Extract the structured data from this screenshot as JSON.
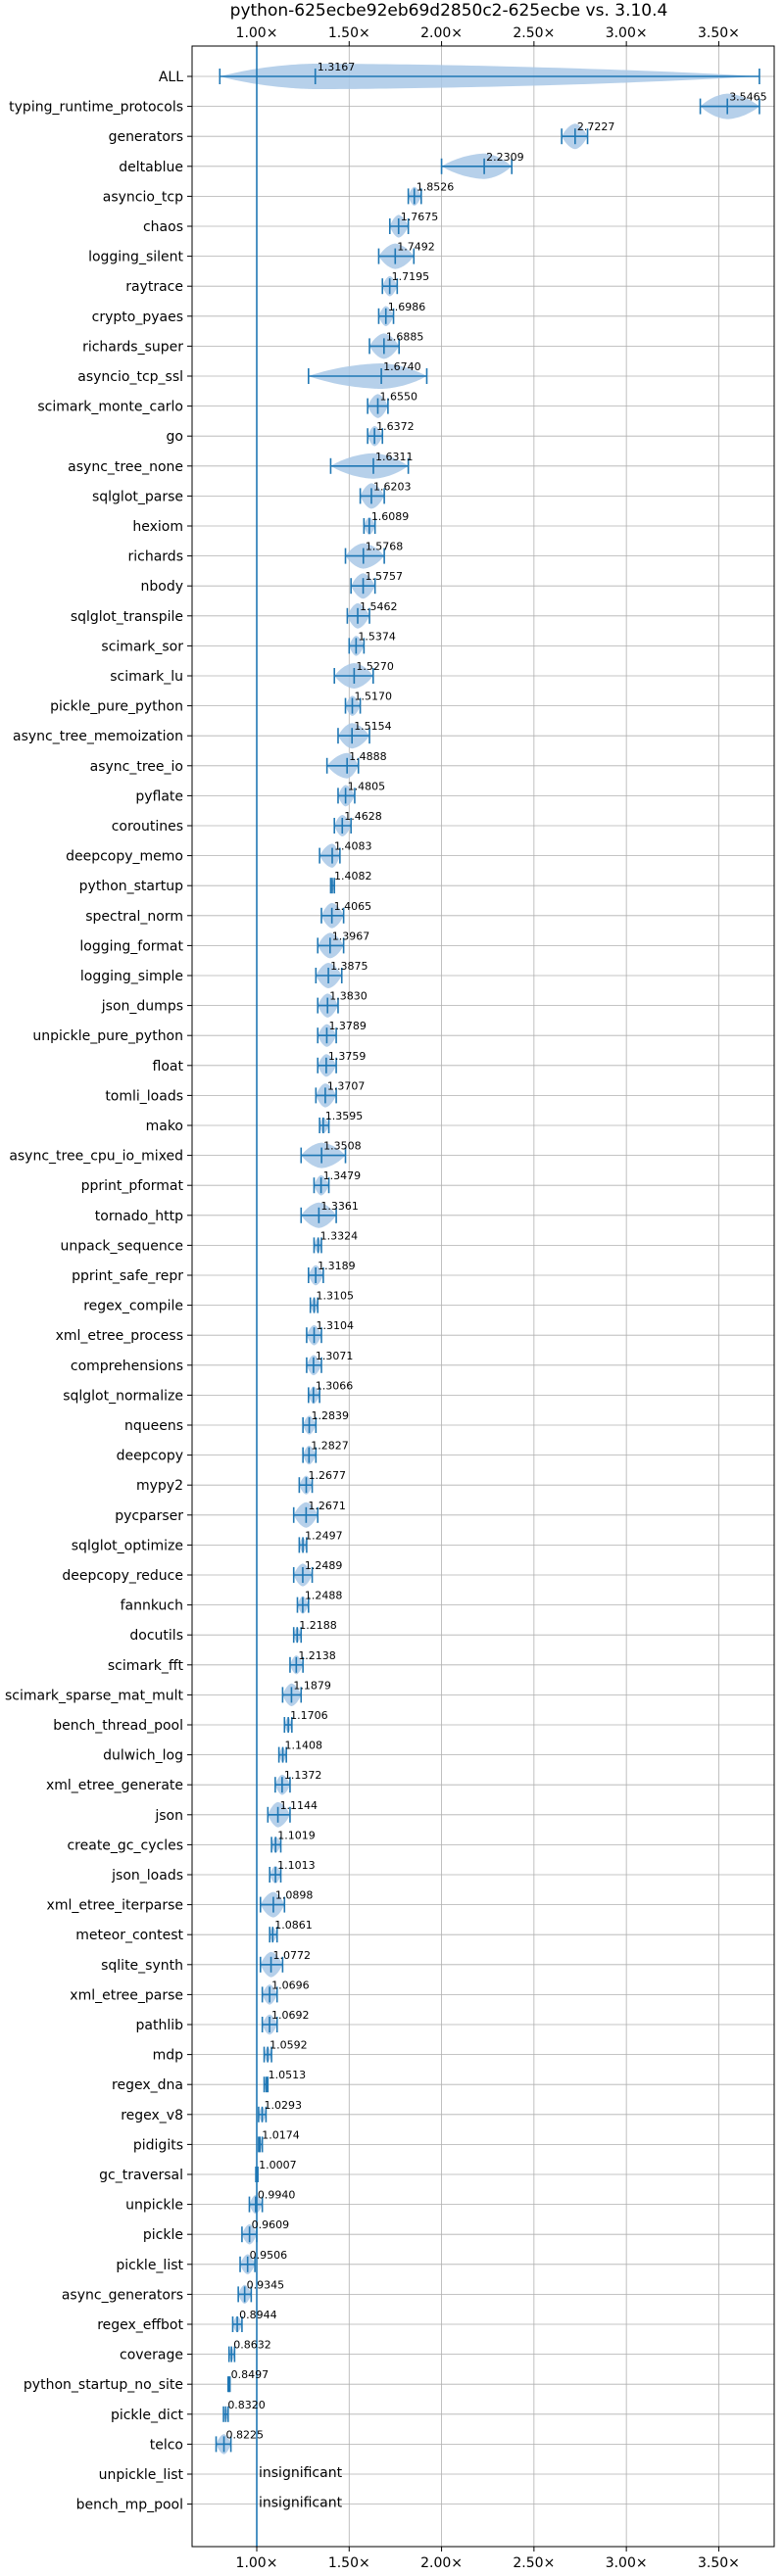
{
  "chart_data": {
    "type": "violin",
    "title": "python-625ecbe92eb69d2850c2-625ecbe vs. 3.10.4",
    "xlabel": "",
    "ylabel": "",
    "xlim": [
      0.65,
      3.8
    ],
    "xticks": [
      {
        "value": 1.0,
        "label": "1.00×"
      },
      {
        "value": 1.5,
        "label": "1.50×"
      },
      {
        "value": 2.0,
        "label": "2.00×"
      },
      {
        "value": 2.5,
        "label": "2.50×"
      },
      {
        "value": 3.0,
        "label": "3.00×"
      },
      {
        "value": 3.5,
        "label": "3.50×"
      }
    ],
    "grid": true,
    "reference_line": 1.0,
    "colors": {
      "violin": "#a9c8e6",
      "line": "#1f77b4"
    },
    "benchmarks": [
      {
        "name": "ALL",
        "label": "1.3167",
        "mean": 1.3167,
        "min": 0.8,
        "max": 3.72,
        "spread": 0.12
      },
      {
        "name": "typing_runtime_protocols",
        "label": "3.5465",
        "mean": 3.5465,
        "min": 3.4,
        "max": 3.72,
        "spread": 0.14
      },
      {
        "name": "generators",
        "label": "2.7227",
        "mean": 2.7227,
        "min": 2.65,
        "max": 2.79,
        "spread": 0.06
      },
      {
        "name": "deltablue",
        "label": "2.2309",
        "mean": 2.2309,
        "min": 2.0,
        "max": 2.38,
        "spread": 0.1
      },
      {
        "name": "asyncio_tcp",
        "label": "1.8526",
        "mean": 1.8526,
        "min": 1.82,
        "max": 1.89,
        "spread": 0.03
      },
      {
        "name": "chaos",
        "label": "1.7675",
        "mean": 1.7675,
        "min": 1.72,
        "max": 1.82,
        "spread": 0.04
      },
      {
        "name": "logging_silent",
        "label": "1.7492",
        "mean": 1.7492,
        "min": 1.66,
        "max": 1.85,
        "spread": 0.07
      },
      {
        "name": "raytrace",
        "label": "1.7195",
        "mean": 1.7195,
        "min": 1.68,
        "max": 1.76,
        "spread": 0.03
      },
      {
        "name": "crypto_pyaes",
        "label": "1.6986",
        "mean": 1.6986,
        "min": 1.66,
        "max": 1.74,
        "spread": 0.03
      },
      {
        "name": "richards_super",
        "label": "1.6885",
        "mean": 1.6885,
        "min": 1.61,
        "max": 1.77,
        "spread": 0.06
      },
      {
        "name": "asyncio_tcp_ssl",
        "label": "1.6740",
        "mean": 1.674,
        "min": 1.28,
        "max": 1.92,
        "spread": 0.2
      },
      {
        "name": "scimark_monte_carlo",
        "label": "1.6550",
        "mean": 1.655,
        "min": 1.6,
        "max": 1.71,
        "spread": 0.04
      },
      {
        "name": "go",
        "label": "1.6372",
        "mean": 1.6372,
        "min": 1.6,
        "max": 1.68,
        "spread": 0.03
      },
      {
        "name": "async_tree_none",
        "label": "1.6311",
        "mean": 1.6311,
        "min": 1.4,
        "max": 1.82,
        "spread": 0.15
      },
      {
        "name": "sqlglot_parse",
        "label": "1.6203",
        "mean": 1.6203,
        "min": 1.56,
        "max": 1.69,
        "spread": 0.05
      },
      {
        "name": "hexiom",
        "label": "1.6089",
        "mean": 1.6089,
        "min": 1.58,
        "max": 1.64,
        "spread": 0.02
      },
      {
        "name": "richards",
        "label": "1.5768",
        "mean": 1.5768,
        "min": 1.48,
        "max": 1.69,
        "spread": 0.08
      },
      {
        "name": "nbody",
        "label": "1.5757",
        "mean": 1.5757,
        "min": 1.51,
        "max": 1.64,
        "spread": 0.05
      },
      {
        "name": "sqlglot_transpile",
        "label": "1.5462",
        "mean": 1.5462,
        "min": 1.49,
        "max": 1.61,
        "spread": 0.04
      },
      {
        "name": "scimark_sor",
        "label": "1.5374",
        "mean": 1.5374,
        "min": 1.5,
        "max": 1.58,
        "spread": 0.03
      },
      {
        "name": "scimark_lu",
        "label": "1.5270",
        "mean": 1.527,
        "min": 1.42,
        "max": 1.63,
        "spread": 0.07
      },
      {
        "name": "pickle_pure_python",
        "label": "1.5170",
        "mean": 1.517,
        "min": 1.48,
        "max": 1.56,
        "spread": 0.03
      },
      {
        "name": "async_tree_memoization",
        "label": "1.5154",
        "mean": 1.5154,
        "min": 1.44,
        "max": 1.61,
        "spread": 0.06
      },
      {
        "name": "async_tree_io",
        "label": "1.4888",
        "mean": 1.4888,
        "min": 1.38,
        "max": 1.55,
        "spread": 0.05
      },
      {
        "name": "pyflate",
        "label": "1.4805",
        "mean": 1.4805,
        "min": 1.44,
        "max": 1.53,
        "spread": 0.03
      },
      {
        "name": "coroutines",
        "label": "1.4628",
        "mean": 1.4628,
        "min": 1.42,
        "max": 1.51,
        "spread": 0.03
      },
      {
        "name": "deepcopy_memo",
        "label": "1.4083",
        "mean": 1.4083,
        "min": 1.34,
        "max": 1.45,
        "spread": 0.03
      },
      {
        "name": "python_startup",
        "label": "1.4082",
        "mean": 1.4082,
        "min": 1.4,
        "max": 1.42,
        "spread": 0.01
      },
      {
        "name": "spectral_norm",
        "label": "1.4065",
        "mean": 1.4065,
        "min": 1.35,
        "max": 1.47,
        "spread": 0.04
      },
      {
        "name": "logging_format",
        "label": "1.3967",
        "mean": 1.3967,
        "min": 1.33,
        "max": 1.47,
        "spread": 0.05
      },
      {
        "name": "logging_simple",
        "label": "1.3875",
        "mean": 1.3875,
        "min": 1.32,
        "max": 1.46,
        "spread": 0.05
      },
      {
        "name": "json_dumps",
        "label": "1.3830",
        "mean": 1.383,
        "min": 1.33,
        "max": 1.44,
        "spread": 0.04
      },
      {
        "name": "unpickle_pure_python",
        "label": "1.3789",
        "mean": 1.3789,
        "min": 1.33,
        "max": 1.43,
        "spread": 0.04
      },
      {
        "name": "float",
        "label": "1.3759",
        "mean": 1.3759,
        "min": 1.33,
        "max": 1.43,
        "spread": 0.04
      },
      {
        "name": "tomli_loads",
        "label": "1.3707",
        "mean": 1.3707,
        "min": 1.32,
        "max": 1.43,
        "spread": 0.04
      },
      {
        "name": "mako",
        "label": "1.3595",
        "mean": 1.3595,
        "min": 1.34,
        "max": 1.39,
        "spread": 0.02
      },
      {
        "name": "async_tree_cpu_io_mixed",
        "label": "1.3508",
        "mean": 1.3508,
        "min": 1.24,
        "max": 1.48,
        "spread": 0.08
      },
      {
        "name": "pprint_pformat",
        "label": "1.3479",
        "mean": 1.3479,
        "min": 1.31,
        "max": 1.39,
        "spread": 0.03
      },
      {
        "name": "tornado_http",
        "label": "1.3361",
        "mean": 1.3361,
        "min": 1.24,
        "max": 1.43,
        "spread": 0.07
      },
      {
        "name": "unpack_sequence",
        "label": "1.3324",
        "mean": 1.3324,
        "min": 1.31,
        "max": 1.35,
        "spread": 0.015
      },
      {
        "name": "pprint_safe_repr",
        "label": "1.3189",
        "mean": 1.3189,
        "min": 1.28,
        "max": 1.36,
        "spread": 0.03
      },
      {
        "name": "regex_compile",
        "label": "1.3105",
        "mean": 1.3105,
        "min": 1.29,
        "max": 1.33,
        "spread": 0.015
      },
      {
        "name": "xml_etree_process",
        "label": "1.3104",
        "mean": 1.3104,
        "min": 1.27,
        "max": 1.35,
        "spread": 0.03
      },
      {
        "name": "comprehensions",
        "label": "1.3071",
        "mean": 1.3071,
        "min": 1.27,
        "max": 1.35,
        "spread": 0.03
      },
      {
        "name": "sqlglot_normalize",
        "label": "1.3066",
        "mean": 1.3066,
        "min": 1.28,
        "max": 1.34,
        "spread": 0.02
      },
      {
        "name": "nqueens",
        "label": "1.2839",
        "mean": 1.2839,
        "min": 1.25,
        "max": 1.32,
        "spread": 0.03
      },
      {
        "name": "deepcopy",
        "label": "1.2827",
        "mean": 1.2827,
        "min": 1.25,
        "max": 1.32,
        "spread": 0.03
      },
      {
        "name": "mypy2",
        "label": "1.2677",
        "mean": 1.2677,
        "min": 1.23,
        "max": 1.3,
        "spread": 0.03
      },
      {
        "name": "pycparser",
        "label": "1.2671",
        "mean": 1.2671,
        "min": 1.2,
        "max": 1.33,
        "spread": 0.05
      },
      {
        "name": "sqlglot_optimize",
        "label": "1.2497",
        "mean": 1.2497,
        "min": 1.23,
        "max": 1.27,
        "spread": 0.015
      },
      {
        "name": "deepcopy_reduce",
        "label": "1.2489",
        "mean": 1.2489,
        "min": 1.2,
        "max": 1.3,
        "spread": 0.04
      },
      {
        "name": "fannkuch",
        "label": "1.2488",
        "mean": 1.2488,
        "min": 1.22,
        "max": 1.28,
        "spread": 0.02
      },
      {
        "name": "docutils",
        "label": "1.2188",
        "mean": 1.2188,
        "min": 1.2,
        "max": 1.24,
        "spread": 0.015
      },
      {
        "name": "scimark_fft",
        "label": "1.2138",
        "mean": 1.2138,
        "min": 1.18,
        "max": 1.25,
        "spread": 0.03
      },
      {
        "name": "scimark_sparse_mat_mult",
        "label": "1.1879",
        "mean": 1.1879,
        "min": 1.14,
        "max": 1.24,
        "spread": 0.04
      },
      {
        "name": "bench_thread_pool",
        "label": "1.1706",
        "mean": 1.1706,
        "min": 1.15,
        "max": 1.19,
        "spread": 0.015
      },
      {
        "name": "dulwich_log",
        "label": "1.1408",
        "mean": 1.1408,
        "min": 1.12,
        "max": 1.16,
        "spread": 0.015
      },
      {
        "name": "xml_etree_generate",
        "label": "1.1372",
        "mean": 1.1372,
        "min": 1.1,
        "max": 1.18,
        "spread": 0.03
      },
      {
        "name": "json",
        "label": "1.1144",
        "mean": 1.1144,
        "min": 1.06,
        "max": 1.18,
        "spread": 0.04
      },
      {
        "name": "create_gc_cycles",
        "label": "1.1019",
        "mean": 1.1019,
        "min": 1.08,
        "max": 1.13,
        "spread": 0.02
      },
      {
        "name": "json_loads",
        "label": "1.1013",
        "mean": 1.1013,
        "min": 1.07,
        "max": 1.13,
        "spread": 0.02
      },
      {
        "name": "xml_etree_iterparse",
        "label": "1.0898",
        "mean": 1.0898,
        "min": 1.02,
        "max": 1.15,
        "spread": 0.04
      },
      {
        "name": "meteor_contest",
        "label": "1.0861",
        "mean": 1.0861,
        "min": 1.07,
        "max": 1.11,
        "spread": 0.015
      },
      {
        "name": "sqlite_synth",
        "label": "1.0772",
        "mean": 1.0772,
        "min": 1.02,
        "max": 1.14,
        "spread": 0.04
      },
      {
        "name": "xml_etree_parse",
        "label": "1.0696",
        "mean": 1.0696,
        "min": 1.03,
        "max": 1.11,
        "spread": 0.03
      },
      {
        "name": "pathlib",
        "label": "1.0692",
        "mean": 1.0692,
        "min": 1.03,
        "max": 1.11,
        "spread": 0.03
      },
      {
        "name": "mdp",
        "label": "1.0592",
        "mean": 1.0592,
        "min": 1.04,
        "max": 1.08,
        "spread": 0.015
      },
      {
        "name": "regex_dna",
        "label": "1.0513",
        "mean": 1.0513,
        "min": 1.04,
        "max": 1.06,
        "spread": 0.01
      },
      {
        "name": "regex_v8",
        "label": "1.0293",
        "mean": 1.0293,
        "min": 1.01,
        "max": 1.05,
        "spread": 0.015
      },
      {
        "name": "pidigits",
        "label": "1.0174",
        "mean": 1.0174,
        "min": 1.01,
        "max": 1.03,
        "spread": 0.008
      },
      {
        "name": "gc_traversal",
        "label": "1.0007",
        "mean": 1.0007,
        "min": 0.995,
        "max": 1.006,
        "spread": 0.006
      },
      {
        "name": "unpickle",
        "label": "0.9940",
        "mean": 0.994,
        "min": 0.96,
        "max": 1.03,
        "spread": 0.025
      },
      {
        "name": "pickle",
        "label": "0.9609",
        "mean": 0.9609,
        "min": 0.92,
        "max": 1.0,
        "spread": 0.03
      },
      {
        "name": "pickle_list",
        "label": "0.9506",
        "mean": 0.9506,
        "min": 0.91,
        "max": 0.99,
        "spread": 0.03
      },
      {
        "name": "async_generators",
        "label": "0.9345",
        "mean": 0.9345,
        "min": 0.9,
        "max": 0.97,
        "spread": 0.03
      },
      {
        "name": "regex_effbot",
        "label": "0.8944",
        "mean": 0.8944,
        "min": 0.87,
        "max": 0.92,
        "spread": 0.015
      },
      {
        "name": "coverage",
        "label": "0.8632",
        "mean": 0.8632,
        "min": 0.85,
        "max": 0.88,
        "spread": 0.015
      },
      {
        "name": "python_startup_no_site",
        "label": "0.8497",
        "mean": 0.8497,
        "min": 0.845,
        "max": 0.855,
        "spread": 0.005
      },
      {
        "name": "pickle_dict",
        "label": "0.8320",
        "mean": 0.832,
        "min": 0.82,
        "max": 0.845,
        "spread": 0.01
      },
      {
        "name": "telco",
        "label": "0.8225",
        "mean": 0.8225,
        "min": 0.78,
        "max": 0.86,
        "spread": 0.03
      },
      {
        "name": "unpickle_list",
        "label": "insignificant",
        "mean": null
      },
      {
        "name": "bench_mp_pool",
        "label": "insignificant",
        "mean": null
      }
    ]
  }
}
